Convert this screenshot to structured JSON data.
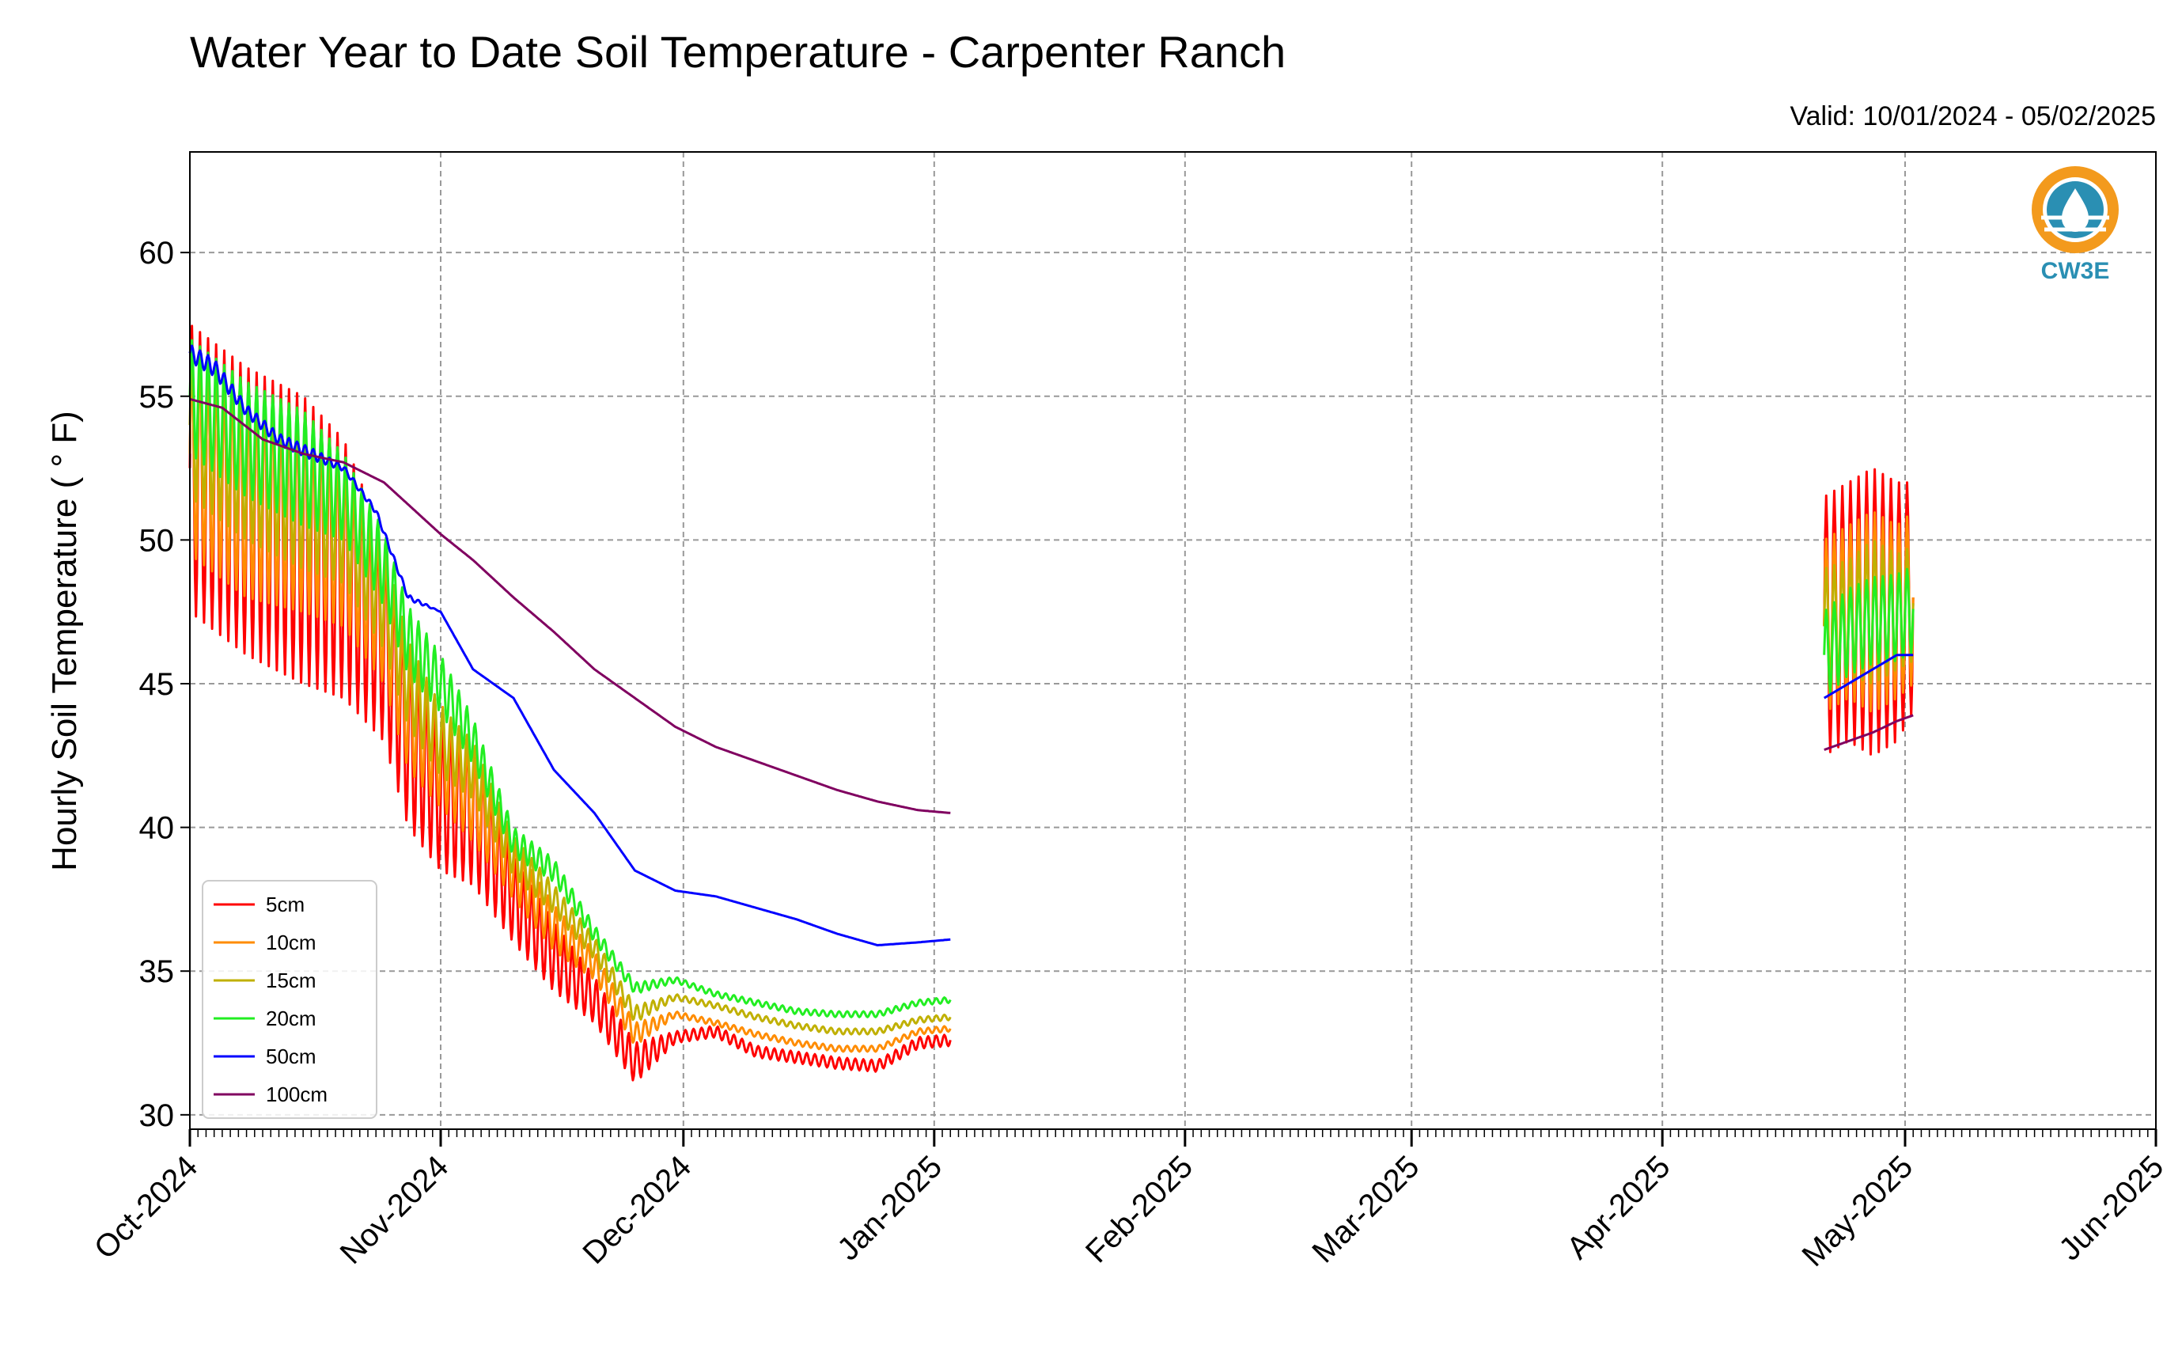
{
  "chart_data": {
    "type": "line",
    "title": "Water Year to Date Soil Temperature - Carpenter Ranch",
    "subtitle": "Valid: 10/01/2024 - 05/02/2025",
    "ylabel": "Hourly Soil Temperature ( ° F)",
    "xlabel": "",
    "ylim": [
      29.5,
      63.5
    ],
    "xlim": [
      "2024-10-01",
      "2025-06-01"
    ],
    "yticks": [
      30,
      35,
      40,
      45,
      50,
      55,
      60
    ],
    "ytick_labels": [
      "30",
      "35",
      "40",
      "45",
      "50",
      "55",
      "60"
    ],
    "xticks": [
      "2024-10-01",
      "2024-11-01",
      "2024-12-01",
      "2025-01-01",
      "2025-02-01",
      "2025-03-01",
      "2025-04-01",
      "2025-05-01",
      "2025-06-01"
    ],
    "xtick_labels": [
      "Oct-2024",
      "Nov-2024",
      "Dec-2024",
      "Jan-2025",
      "Feb-2025",
      "Mar-2025",
      "Apr-2025",
      "May-2025",
      "Jun-2025"
    ],
    "grid": true,
    "legend_position": "lower-left",
    "series": [
      {
        "name": "5cm",
        "color": "#ff0000",
        "segments": [
          {
            "x": [
              "2024-10-01",
              "2024-10-08",
              "2024-10-15",
              "2024-10-20",
              "2024-10-25",
              "2024-10-28",
              "2024-11-01",
              "2024-11-05",
              "2024-11-10",
              "2024-11-15",
              "2024-11-20",
              "2024-11-25",
              "2024-11-30",
              "2024-12-05",
              "2024-12-10",
              "2024-12-15",
              "2024-12-20",
              "2024-12-25",
              "2024-12-30",
              "2025-01-03"
            ],
            "y": [
              52.5,
              51,
              50,
              49,
              46.5,
              43,
              41,
              40.5,
              37.5,
              35.5,
              34,
              31.8,
              32.7,
              32.9,
              32.2,
              32,
              31.8,
              31.7,
              32.5,
              32.6
            ],
            "amp": [
              5,
              5,
              5,
              4.5,
              3.5,
              3,
              2.5,
              2.5,
              1.5,
              1.2,
              0.8,
              0.7,
              0.2,
              0.2,
              0.2,
              0.2,
              0.2,
              0.2,
              0.2,
              0.2
            ]
          },
          {
            "x": [
              "2025-04-21",
              "2025-04-24",
              "2025-04-27",
              "2025-04-30",
              "2025-05-02"
            ],
            "y": [
              47,
              47.5,
              47.5,
              47.5,
              48
            ],
            "amp": [
              4.5,
              4.5,
              5,
              4.5,
              4
            ]
          }
        ]
      },
      {
        "name": "10cm",
        "color": "#ff8c00",
        "segments": [
          {
            "x": [
              "2024-10-01",
              "2024-10-08",
              "2024-10-15",
              "2024-10-20",
              "2024-10-25",
              "2024-10-28",
              "2024-11-01",
              "2024-11-05",
              "2024-11-10",
              "2024-11-15",
              "2024-11-20",
              "2024-11-25",
              "2024-11-30",
              "2024-12-05",
              "2024-12-10",
              "2024-12-15",
              "2024-12-20",
              "2024-12-25",
              "2024-12-30",
              "2025-01-03"
            ],
            "y": [
              53,
              51.5,
              51,
              50,
              47.5,
              44,
              42.5,
              41,
              38.5,
              36.5,
              35.2,
              32.8,
              33.5,
              33.2,
              32.8,
              32.5,
              32.3,
              32.3,
              32.9,
              33
            ],
            "amp": [
              3.5,
              3.5,
              3.5,
              3,
              2.5,
              2,
              1.8,
              1.5,
              1,
              0.8,
              0.5,
              0.4,
              0.1,
              0.1,
              0.1,
              0.1,
              0.1,
              0.1,
              0.1,
              0.1
            ]
          },
          {
            "x": [
              "2025-04-21",
              "2025-04-24",
              "2025-04-27",
              "2025-04-30",
              "2025-05-02"
            ],
            "y": [
              47,
              47.5,
              47.5,
              47.5,
              48
            ],
            "amp": [
              3,
              3,
              3.5,
              3,
              3
            ]
          }
        ]
      },
      {
        "name": "15cm",
        "color": "#c0b000",
        "segments": [
          {
            "x": [
              "2024-10-01",
              "2024-10-08",
              "2024-10-15",
              "2024-10-20",
              "2024-10-25",
              "2024-10-28",
              "2024-11-01",
              "2024-11-05",
              "2024-11-10",
              "2024-11-15",
              "2024-11-20",
              "2024-11-25",
              "2024-11-30",
              "2024-12-05",
              "2024-12-10",
              "2024-12-15",
              "2024-12-20",
              "2024-12-25",
              "2024-12-30",
              "2025-01-03"
            ],
            "y": [
              54,
              52.5,
              51.5,
              50.5,
              48,
              45,
              43,
              42,
              39,
              37.5,
              35.8,
              33.5,
              34.1,
              33.8,
              33.4,
              33.1,
              32.9,
              32.9,
              33.3,
              33.4
            ],
            "amp": [
              2.5,
              2.5,
              2.5,
              2,
              1.8,
              1.5,
              1.2,
              1,
              0.7,
              0.5,
              0.4,
              0.3,
              0.1,
              0.1,
              0.1,
              0.1,
              0.1,
              0.1,
              0.1,
              0.1
            ]
          },
          {
            "x": [
              "2025-04-21",
              "2025-04-24",
              "2025-04-27",
              "2025-04-30",
              "2025-05-02"
            ],
            "y": [
              47,
              47.3,
              47.5,
              47.5,
              47.8
            ],
            "amp": [
              2,
              2,
              2.5,
              2,
              2
            ]
          }
        ]
      },
      {
        "name": "20cm",
        "color": "#22ee22",
        "segments": [
          {
            "x": [
              "2024-10-01",
              "2024-10-08",
              "2024-10-15",
              "2024-10-20",
              "2024-10-25",
              "2024-10-28",
              "2024-11-01",
              "2024-11-05",
              "2024-11-10",
              "2024-11-15",
              "2024-11-20",
              "2024-11-25",
              "2024-11-30",
              "2024-12-05",
              "2024-12-10",
              "2024-12-15",
              "2024-12-20",
              "2024-12-25",
              "2024-12-30",
              "2025-01-03"
            ],
            "y": [
              55,
              53.5,
              52.5,
              51.5,
              49,
              46.5,
              45,
              43,
              39.5,
              38.5,
              36.3,
              34.4,
              34.7,
              34.2,
              33.9,
              33.6,
              33.5,
              33.5,
              33.9,
              34
            ],
            "amp": [
              2,
              2,
              2,
              1.5,
              1.3,
              1.2,
              1,
              0.8,
              0.5,
              0.4,
              0.3,
              0.2,
              0.1,
              0.1,
              0.1,
              0.1,
              0.1,
              0.1,
              0.1,
              0.1
            ]
          },
          {
            "x": [
              "2025-04-21",
              "2025-04-24",
              "2025-04-27",
              "2025-04-30",
              "2025-05-02"
            ],
            "y": [
              46,
              46.8,
              47.2,
              47.3,
              47.6
            ],
            "amp": [
              1.5,
              1.5,
              1.5,
              1.5,
              1.5
            ]
          }
        ]
      },
      {
        "name": "50cm",
        "color": "#0000ff",
        "segments": [
          {
            "x": [
              "2024-10-01",
              "2024-10-04",
              "2024-10-08",
              "2024-10-12",
              "2024-10-16",
              "2024-10-20",
              "2024-10-24",
              "2024-10-28",
              "2024-11-01",
              "2024-11-05",
              "2024-11-10",
              "2024-11-15",
              "2024-11-20",
              "2024-11-25",
              "2024-11-30",
              "2024-12-05",
              "2024-12-10",
              "2024-12-15",
              "2024-12-20",
              "2024-12-25",
              "2024-12-30",
              "2025-01-03"
            ],
            "y": [
              56.5,
              56,
              54.5,
              53.5,
              53,
              52.5,
              51,
              48,
              47.5,
              45.5,
              44.5,
              42,
              40.5,
              38.5,
              37.8,
              37.6,
              37.2,
              36.8,
              36.3,
              35.9,
              36.0,
              36.1
            ],
            "amp": [
              0.3,
              0.3,
              0.2,
              0.2,
              0.2,
              0.1,
              0.1,
              0.1,
              0,
              0,
              0,
              0,
              0,
              0,
              0,
              0,
              0,
              0,
              0,
              0,
              0,
              0
            ]
          },
          {
            "x": [
              "2025-04-21",
              "2025-04-24",
              "2025-04-27",
              "2025-04-30",
              "2025-05-02"
            ],
            "y": [
              44.5,
              45,
              45.5,
              46,
              46
            ],
            "amp": [
              0,
              0,
              0,
              0,
              0
            ]
          }
        ]
      },
      {
        "name": "100cm",
        "color": "#800060",
        "segments": [
          {
            "x": [
              "2024-10-01",
              "2024-10-05",
              "2024-10-10",
              "2024-10-15",
              "2024-10-20",
              "2024-10-25",
              "2024-11-01",
              "2024-11-05",
              "2024-11-10",
              "2024-11-15",
              "2024-11-20",
              "2024-11-25",
              "2024-11-30",
              "2024-12-05",
              "2024-12-10",
              "2024-12-15",
              "2024-12-20",
              "2024-12-25",
              "2024-12-30",
              "2025-01-03"
            ],
            "y": [
              54.9,
              54.6,
              53.5,
              53.0,
              52.7,
              52,
              50.2,
              49.3,
              48,
              46.8,
              45.5,
              44.5,
              43.5,
              42.8,
              42.3,
              41.8,
              41.3,
              40.9,
              40.6,
              40.5
            ],
            "amp": [
              0,
              0,
              0,
              0,
              0,
              0,
              0,
              0,
              0,
              0,
              0,
              0,
              0,
              0,
              0,
              0,
              0,
              0,
              0,
              0
            ]
          },
          {
            "x": [
              "2025-04-21",
              "2025-04-24",
              "2025-04-27",
              "2025-04-30",
              "2025-05-02"
            ],
            "y": [
              42.7,
              43.0,
              43.3,
              43.7,
              43.9
            ],
            "amp": [
              0,
              0,
              0,
              0,
              0
            ]
          }
        ]
      }
    ]
  },
  "logo": {
    "text": "CW3E",
    "icon": "water-drop-logo-icon",
    "ring_color": "#f39a1d",
    "wave_color": "#2a8fb3"
  }
}
